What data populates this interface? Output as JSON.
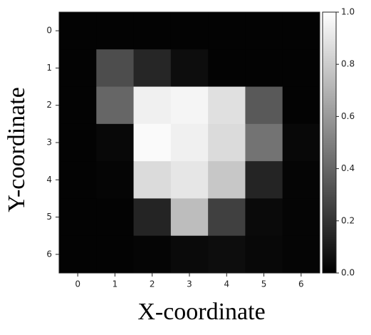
{
  "chart_data": {
    "type": "heatmap",
    "colormap": "gray",
    "x_label": "X-coordinate",
    "y_label": "Y-coordinate",
    "x": [
      0,
      1,
      2,
      3,
      4,
      5,
      6
    ],
    "y": [
      0,
      1,
      2,
      3,
      4,
      5,
      6
    ],
    "values": [
      [
        0.01,
        0.01,
        0.01,
        0.01,
        0.01,
        0.01,
        0.01
      ],
      [
        0.01,
        0.3,
        0.15,
        0.05,
        0.01,
        0.01,
        0.01
      ],
      [
        0.01,
        0.4,
        0.94,
        0.96,
        0.88,
        0.35,
        0.01
      ],
      [
        0.01,
        0.03,
        0.98,
        0.94,
        0.86,
        0.45,
        0.03
      ],
      [
        0.01,
        0.02,
        0.86,
        0.9,
        0.78,
        0.14,
        0.02
      ],
      [
        0.01,
        0.01,
        0.14,
        0.74,
        0.25,
        0.04,
        0.02
      ],
      [
        0.01,
        0.01,
        0.02,
        0.04,
        0.05,
        0.03,
        0.02
      ]
    ],
    "clim": [
      0,
      1
    ],
    "cticks": [
      {
        "value": 0,
        "label": "0.0"
      },
      0.2,
      0.4,
      0.6,
      0.8,
      {
        "value": 1,
        "label": "1.0"
      }
    ]
  }
}
